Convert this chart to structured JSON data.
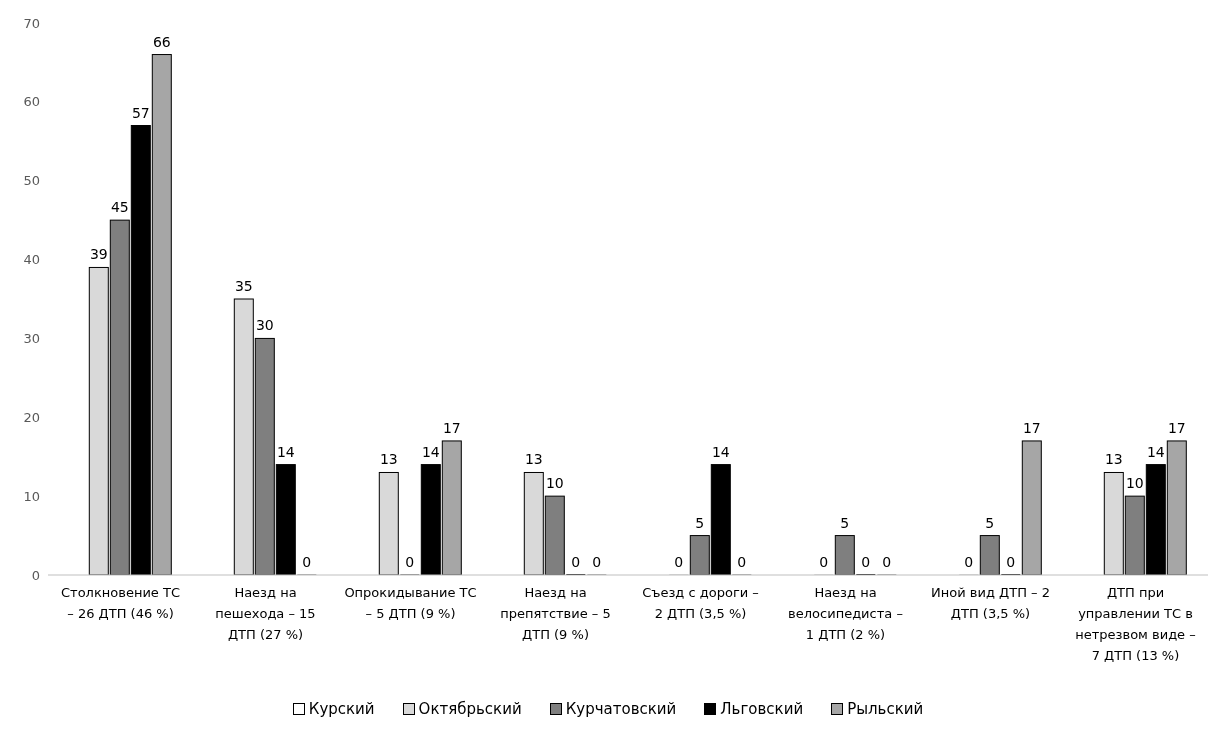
{
  "chart_data": {
    "type": "bar",
    "categories": [
      "Столкновение ТС – 26 ДТП (46 %)",
      "Наезд на пешехода – 15 ДТП (27 %)",
      "Опрокидывание ТС – 5 ДТП (9 %)",
      "Наезд на препятствие – 5 ДТП (9 %)",
      "Съезд с дороги – 2 ДТП (3,5 %)",
      "Наезд на велосипедиста – 1 ДТП (2 %)",
      "Иной вид ДТП – 2 ДТП (3,5 %)",
      "ДТП при управлении ТС в нетрезвом виде – 7 ДТП (13 %)"
    ],
    "series": [
      {
        "name": "Курский",
        "color": "#ffffff",
        "values": [
          null,
          null,
          null,
          null,
          null,
          null,
          null,
          null
        ]
      },
      {
        "name": "Октябрьский",
        "color": "#d9d9d9",
        "values": [
          39,
          35,
          13,
          13,
          0,
          0,
          0,
          13
        ]
      },
      {
        "name": "Курчатовский",
        "color": "#7f7f7f",
        "values": [
          45,
          30,
          0,
          10,
          5,
          5,
          5,
          10
        ]
      },
      {
        "name": "Льговский",
        "color": "#000000",
        "values": [
          57,
          14,
          14,
          0,
          14,
          0,
          0,
          14
        ]
      },
      {
        "name": "Рыльский",
        "color": "#a6a6a6",
        "values": [
          66,
          0,
          17,
          0,
          0,
          0,
          17,
          17
        ]
      }
    ],
    "ylim": [
      0,
      70
    ],
    "yticks": [
      0,
      10,
      20,
      30,
      40,
      50,
      60,
      70
    ],
    "data_labels": true,
    "legend": "bottom"
  }
}
